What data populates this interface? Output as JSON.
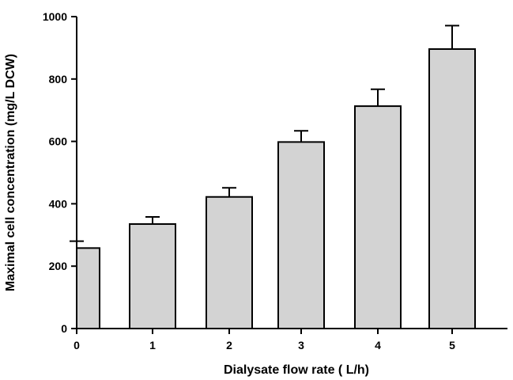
{
  "colors": {
    "bar_fill": "#d3d3d3",
    "bar_stroke": "#000000",
    "axis": "#000000",
    "background": "#ffffff"
  },
  "chart_data": {
    "type": "bar",
    "xlabel": "Dialysate flow rate ( L/h)",
    "ylabel": "Maximal cell concentration (mg/L DCW)",
    "categories": [
      "0",
      "1",
      "2",
      "3",
      "4",
      "5"
    ],
    "values": [
      258,
      335,
      422,
      598,
      713,
      896
    ],
    "error_upper": [
      280,
      358,
      451,
      634,
      767,
      971
    ],
    "ylim": [
      0,
      1000
    ],
    "yticks": [
      0,
      200,
      400,
      600,
      800,
      1000
    ],
    "ytick_labels": [
      "0",
      "200",
      "400",
      "600",
      "800",
      "1000"
    ],
    "grid": false,
    "legend": "none"
  }
}
